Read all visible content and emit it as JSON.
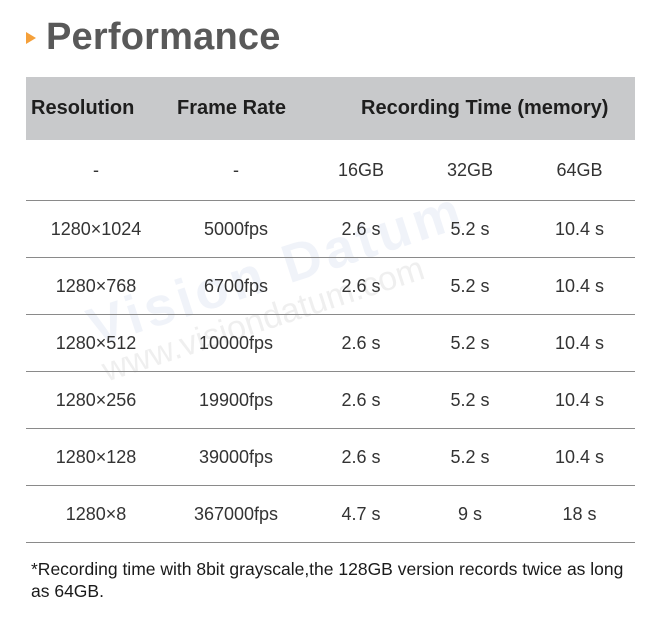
{
  "page": {
    "title": "Performance",
    "title_arrow_color": "#f5a03a",
    "header_bg_color": "#c8c9cb"
  },
  "table": {
    "headers": {
      "resolution": "Resolution",
      "frame_rate": "Frame Rate",
      "recording_time": "Recording Time (memory)"
    },
    "subheader": {
      "resolution": "-",
      "frame_rate": "-",
      "m1": "16GB",
      "m2": "32GB",
      "m3": "64GB"
    },
    "rows": [
      {
        "resolution": "1280×1024",
        "frame_rate": "5000fps",
        "m1": "2.6 s",
        "m2": "5.2 s",
        "m3": "10.4 s"
      },
      {
        "resolution": "1280×768",
        "frame_rate": "6700fps",
        "m1": "2.6 s",
        "m2": "5.2 s",
        "m3": "10.4 s"
      },
      {
        "resolution": "1280×512",
        "frame_rate": "10000fps",
        "m1": "2.6 s",
        "m2": "5.2 s",
        "m3": "10.4 s"
      },
      {
        "resolution": "1280×256",
        "frame_rate": "19900fps",
        "m1": "2.6 s",
        "m2": "5.2 s",
        "m3": "10.4 s"
      },
      {
        "resolution": "1280×128",
        "frame_rate": "39000fps",
        "m1": "2.6 s",
        "m2": "5.2 s",
        "m3": "10.4 s"
      },
      {
        "resolution": "1280×8",
        "frame_rate": "367000fps",
        "m1": "4.7 s",
        "m2": "9 s",
        "m3": "18 s"
      }
    ]
  },
  "footnote": "*Recording time with 8bit grayscale,the 128GB version records twice as long as 64GB.",
  "watermark": {
    "brand": "Vision Datum",
    "url": "www.visiondatum.com"
  }
}
